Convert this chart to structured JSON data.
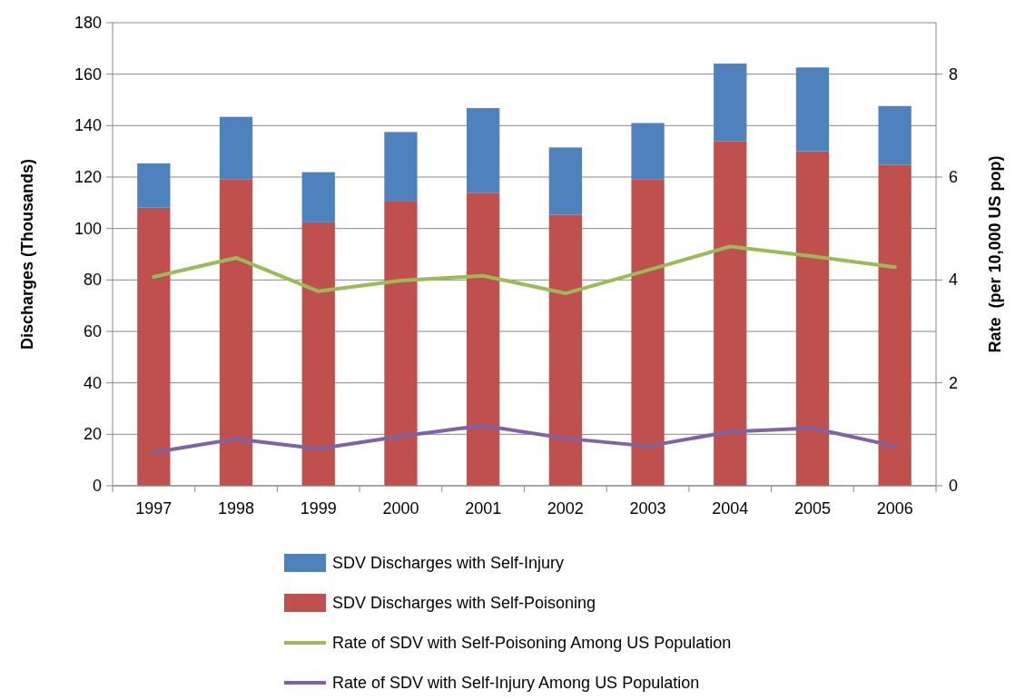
{
  "chart_data": {
    "type": "bar",
    "stacked": true,
    "categories": [
      "1997",
      "1998",
      "1999",
      "2000",
      "2001",
      "2002",
      "2003",
      "2004",
      "2005",
      "2006"
    ],
    "ylabel": "Discharges (Thousands)",
    "y2label": "Rate  (per 10,000 US pop)",
    "ylim": [
      0,
      180
    ],
    "yticks": [
      0,
      20,
      40,
      60,
      80,
      100,
      120,
      140,
      160,
      180
    ],
    "y2lim": [
      0,
      9
    ],
    "y2ticks": [
      0,
      2,
      4,
      6,
      8
    ],
    "grid": "y",
    "legend": "bottom",
    "series": [
      {
        "name": "SDV Discharges with Self-Poisoning",
        "color": "#c0504d",
        "values": [
          108.1,
          119.0,
          102.4,
          110.5,
          113.9,
          105.4,
          119.0,
          134.0,
          130.0,
          124.7
        ]
      },
      {
        "name": "SDV Discharges with Self-Injury",
        "color": "#4f81bd",
        "values": [
          17.2,
          24.4,
          19.5,
          27.0,
          32.9,
          26.1,
          22.0,
          30.1,
          32.6,
          22.9
        ]
      },
      {
        "name": "Rate of SDV with Self-Poisoning Among US Population",
        "type": "line",
        "axis": "y2",
        "color": "#9bbb59",
        "values": [
          4.06,
          4.43,
          3.78,
          3.99,
          4.08,
          3.74,
          4.19,
          4.65,
          4.46,
          4.25
        ]
      },
      {
        "name": "Rate of SDV with Self-Injury Among US Population",
        "type": "line",
        "axis": "y2",
        "color": "#8064a2",
        "values": [
          0.65,
          0.91,
          0.72,
          0.96,
          1.17,
          0.92,
          0.77,
          1.05,
          1.12,
          0.77
        ]
      }
    ]
  }
}
